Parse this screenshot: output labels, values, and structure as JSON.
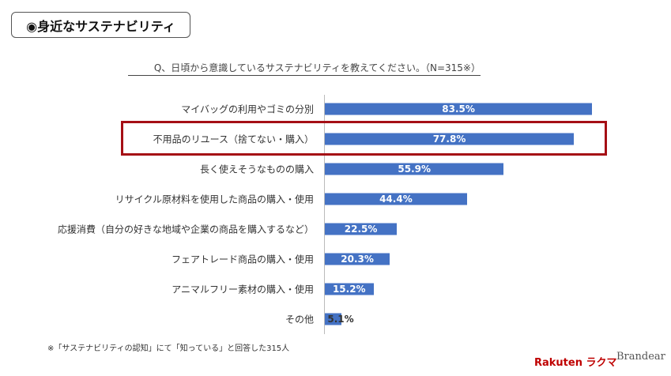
{
  "header": {
    "title": "◉身近なサステナビリティ"
  },
  "chart_data": {
    "type": "bar",
    "orientation": "horizontal",
    "title": "Q、日頃から意識しているサステナビリティを教えてください。（N=315※）",
    "categories": [
      "マイバッグの利用やゴミの分別",
      "不用品のリユース（捨てない・購入）",
      "長く使えそうなものの購入",
      "リサイクル原材料を使用した商品の購入・使用",
      "応援消費（自分の好きな地域や企業の商品を購入するなど）",
      "フェアトレード商品の購入・使用",
      "アニマルフリー素材の購入・使用",
      "その他"
    ],
    "values": [
      83.5,
      77.8,
      55.9,
      44.4,
      22.5,
      20.3,
      15.2,
      5.1
    ],
    "labels": [
      "83.5%",
      "77.8%",
      "55.9%",
      "44.4%",
      "22.5%",
      "20.3%",
      "15.2%",
      "5.1%"
    ],
    "xlim": [
      0,
      100
    ],
    "highlighted": "不用品のリユース（捨てない・購入）",
    "bar_color": "#4472c4",
    "highlight_color": "#a50f15"
  },
  "footnote": "※「サステナビリティの認知」にて「知っている」と回答した315人",
  "logos": {
    "rakuma": "Rakuten ラクマ",
    "brandear": "Brandear"
  }
}
